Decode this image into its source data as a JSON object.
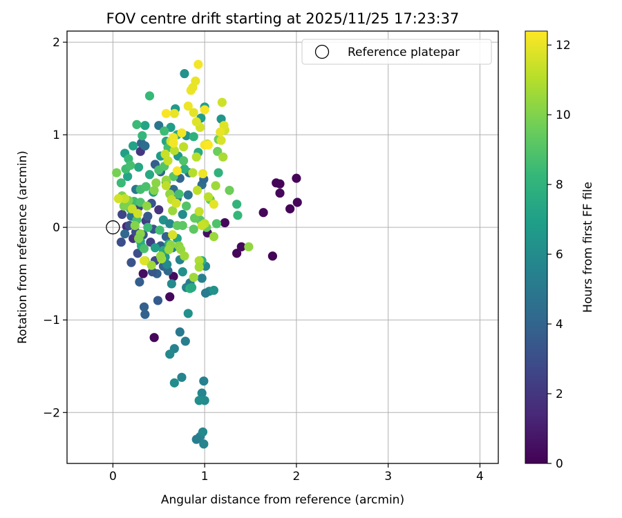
{
  "chart_data": {
    "type": "scatter",
    "title": "FOV centre drift starting at 2025/11/25 17:23:37",
    "xlabel": "Angular distance from reference (arcmin)",
    "ylabel": "Rotation from reference (arcmin)",
    "xlim": [
      -0.5,
      4.2
    ],
    "ylim": [
      -2.55,
      2.12
    ],
    "xticks": [
      0,
      1,
      2,
      3,
      4
    ],
    "xtick_labels": [
      "0",
      "1",
      "2",
      "3",
      "4"
    ],
    "yticks": [
      -2,
      -1,
      0,
      1,
      2
    ],
    "ytick_labels": [
      "−2",
      "−1",
      "0",
      "1",
      "2"
    ],
    "grid": true,
    "legend": {
      "position": "top-right",
      "label": "Reference platepar"
    },
    "reference_point": {
      "x": 0,
      "y": 0
    },
    "colorbar": {
      "label": "Hours from first FF file",
      "range": [
        0,
        12.4
      ],
      "ticks": [
        0,
        2,
        4,
        6,
        8,
        10,
        12
      ],
      "tick_labels": [
        "0",
        "2",
        "4",
        "6",
        "8",
        "10",
        "12"
      ],
      "colormap": [
        "#440154",
        "#482878",
        "#3e4989",
        "#31688e",
        "#26828e",
        "#1f9e89",
        "#35b779",
        "#6ece58",
        "#b5de2b",
        "#fde725"
      ]
    },
    "points": [
      {
        "x": 0.45,
        "y": -1.19,
        "c": 0.2
      },
      {
        "x": 0.62,
        "y": -0.75,
        "c": 0.3
      },
      {
        "x": 0.33,
        "y": -0.5,
        "c": 0.5
      },
      {
        "x": 0.66,
        "y": -0.53,
        "c": 0.4
      },
      {
        "x": 1.22,
        "y": 0.05,
        "c": 0.3
      },
      {
        "x": 1.03,
        "y": -0.06,
        "c": 0.5
      },
      {
        "x": 1.35,
        "y": -0.28,
        "c": 0.2
      },
      {
        "x": 1.4,
        "y": -0.21,
        "c": 0.3
      },
      {
        "x": 1.74,
        "y": -0.31,
        "c": 0.1
      },
      {
        "x": 1.64,
        "y": 0.16,
        "c": 0.2
      },
      {
        "x": 1.78,
        "y": 0.48,
        "c": 0.1
      },
      {
        "x": 1.82,
        "y": 0.47,
        "c": 0.15
      },
      {
        "x": 1.82,
        "y": 0.37,
        "c": 0.2
      },
      {
        "x": 1.93,
        "y": 0.2,
        "c": 0.1
      },
      {
        "x": 2.0,
        "y": 0.53,
        "c": 0.1
      },
      {
        "x": 2.01,
        "y": 0.27,
        "c": 0.2
      },
      {
        "x": 0.15,
        "y": 0.01,
        "c": 1.5
      },
      {
        "x": 0.22,
        "y": -0.12,
        "c": 1.8
      },
      {
        "x": 0.3,
        "y": 0.82,
        "c": 2.0
      },
      {
        "x": 0.36,
        "y": 0.07,
        "c": 2.2
      },
      {
        "x": 0.28,
        "y": 0.22,
        "c": 2.5
      },
      {
        "x": 0.41,
        "y": -0.16,
        "c": 2.4
      },
      {
        "x": 0.5,
        "y": 0.19,
        "c": 1.9
      },
      {
        "x": 0.46,
        "y": -0.36,
        "c": 2.8
      },
      {
        "x": 0.27,
        "y": -0.28,
        "c": 3.0
      },
      {
        "x": 0.2,
        "y": -0.38,
        "c": 3.2
      },
      {
        "x": 0.09,
        "y": -0.16,
        "c": 3.0
      },
      {
        "x": 0.1,
        "y": 0.14,
        "c": 2.6
      },
      {
        "x": 0.18,
        "y": 0.02,
        "c": 3.1
      },
      {
        "x": 0.25,
        "y": -0.05,
        "c": 2.9
      },
      {
        "x": 0.33,
        "y": -0.08,
        "c": 3.4
      },
      {
        "x": 0.38,
        "y": 0.12,
        "c": 3.5
      },
      {
        "x": 0.44,
        "y": -0.02,
        "c": 3.2
      },
      {
        "x": 0.52,
        "y": -0.2,
        "c": 3.6
      },
      {
        "x": 0.48,
        "y": -0.5,
        "c": 3.8
      },
      {
        "x": 0.49,
        "y": -0.79,
        "c": 3.5
      },
      {
        "x": 0.29,
        "y": -0.59,
        "c": 3.7
      },
      {
        "x": 0.34,
        "y": -0.86,
        "c": 3.8
      },
      {
        "x": 0.35,
        "y": -0.94,
        "c": 3.9
      },
      {
        "x": 0.43,
        "y": -0.48,
        "c": 3.4
      },
      {
        "x": 0.55,
        "y": -0.42,
        "c": 4.0
      },
      {
        "x": 0.6,
        "y": -0.47,
        "c": 4.2
      },
      {
        "x": 0.58,
        "y": -0.1,
        "c": 3.9
      },
      {
        "x": 0.42,
        "y": 0.26,
        "c": 3.3
      },
      {
        "x": 0.46,
        "y": 0.68,
        "c": 3.7
      },
      {
        "x": 0.52,
        "y": 0.6,
        "c": 3.9
      },
      {
        "x": 0.31,
        "y": 0.91,
        "c": 4.1
      },
      {
        "x": 0.35,
        "y": 0.88,
        "c": 4.4
      },
      {
        "x": 0.5,
        "y": 1.1,
        "c": 4.8
      },
      {
        "x": 0.58,
        "y": 0.49,
        "c": 4.5
      },
      {
        "x": 0.66,
        "y": 0.41,
        "c": 4.3
      },
      {
        "x": 0.7,
        "y": 0.31,
        "c": 4.6
      },
      {
        "x": 0.25,
        "y": 0.41,
        "c": 4.9
      },
      {
        "x": 0.2,
        "y": 0.12,
        "c": 4.7
      },
      {
        "x": 0.13,
        "y": -0.07,
        "c": 4.2
      },
      {
        "x": 0.73,
        "y": 0.53,
        "c": 4.0
      },
      {
        "x": 0.83,
        "y": 0.59,
        "c": 4.8
      },
      {
        "x": 0.97,
        "y": 0.46,
        "c": 4.4
      },
      {
        "x": 0.99,
        "y": 0.52,
        "c": 4.1
      },
      {
        "x": 0.82,
        "y": 0.35,
        "c": 4.9
      },
      {
        "x": 0.73,
        "y": -1.13,
        "c": 5.0
      },
      {
        "x": 0.79,
        "y": -1.23,
        "c": 5.3
      },
      {
        "x": 0.67,
        "y": -1.31,
        "c": 5.5
      },
      {
        "x": 0.62,
        "y": -1.37,
        "c": 5.8
      },
      {
        "x": 0.75,
        "y": -1.62,
        "c": 5.6
      },
      {
        "x": 0.67,
        "y": -1.68,
        "c": 6.0
      },
      {
        "x": 0.99,
        "y": -1.66,
        "c": 5.4
      },
      {
        "x": 0.97,
        "y": -1.79,
        "c": 5.7
      },
      {
        "x": 1.0,
        "y": -1.87,
        "c": 5.9
      },
      {
        "x": 0.94,
        "y": -1.87,
        "c": 6.1
      },
      {
        "x": 0.95,
        "y": -2.26,
        "c": 5.5
      },
      {
        "x": 0.98,
        "y": -2.21,
        "c": 5.8
      },
      {
        "x": 0.91,
        "y": -2.29,
        "c": 5.3
      },
      {
        "x": 0.99,
        "y": -2.34,
        "c": 5.6
      },
      {
        "x": 0.82,
        "y": -0.93,
        "c": 6.2
      },
      {
        "x": 0.64,
        "y": -0.61,
        "c": 5.9
      },
      {
        "x": 0.84,
        "y": -0.6,
        "c": 5.2
      },
      {
        "x": 0.8,
        "y": -0.65,
        "c": 5.6
      },
      {
        "x": 0.97,
        "y": -0.55,
        "c": 5.4
      },
      {
        "x": 1.01,
        "y": -0.42,
        "c": 5.8
      },
      {
        "x": 1.05,
        "y": -0.69,
        "c": 6.0
      },
      {
        "x": 1.01,
        "y": -0.71,
        "c": 5.2
      },
      {
        "x": 1.1,
        "y": -0.68,
        "c": 6.3
      },
      {
        "x": 0.73,
        "y": -0.35,
        "c": 5.5
      },
      {
        "x": 0.76,
        "y": -0.48,
        "c": 6.2
      },
      {
        "x": 0.57,
        "y": -0.32,
        "c": 6.6
      },
      {
        "x": 0.59,
        "y": -0.4,
        "c": 5.9
      },
      {
        "x": 0.65,
        "y": -0.22,
        "c": 5.7
      },
      {
        "x": 0.55,
        "y": 0.08,
        "c": 6.3
      },
      {
        "x": 0.62,
        "y": 0.04,
        "c": 5.8
      },
      {
        "x": 0.76,
        "y": 0.14,
        "c": 6.0
      },
      {
        "x": 0.78,
        "y": 1.66,
        "c": 6.3
      },
      {
        "x": 0.8,
        "y": 0.99,
        "c": 6.4
      },
      {
        "x": 0.71,
        "y": 0.77,
        "c": 6.6
      },
      {
        "x": 0.52,
        "y": 0.77,
        "c": 6.8
      },
      {
        "x": 0.68,
        "y": 1.28,
        "c": 6.7
      },
      {
        "x": 0.96,
        "y": 1.18,
        "c": 6.9
      },
      {
        "x": 1.0,
        "y": 1.3,
        "c": 7.0
      },
      {
        "x": 1.18,
        "y": 1.17,
        "c": 6.5
      },
      {
        "x": 0.35,
        "y": 1.1,
        "c": 7.2
      },
      {
        "x": 0.58,
        "y": 0.93,
        "c": 7.3
      },
      {
        "x": 0.63,
        "y": 1.08,
        "c": 6.9
      },
      {
        "x": 0.22,
        "y": 0.88,
        "c": 7.1
      },
      {
        "x": 0.13,
        "y": 0.8,
        "c": 7.0
      },
      {
        "x": 0.16,
        "y": 0.55,
        "c": 7.2
      },
      {
        "x": 0.28,
        "y": 0.65,
        "c": 7.4
      },
      {
        "x": 0.4,
        "y": 0.57,
        "c": 7.5
      },
      {
        "x": 0.44,
        "y": 0.38,
        "c": 7.1
      },
      {
        "x": 0.3,
        "y": -0.15,
        "c": 7.3
      },
      {
        "x": 0.31,
        "y": -0.2,
        "c": 7.6
      },
      {
        "x": 0.46,
        "y": -0.22,
        "c": 7.0
      },
      {
        "x": 0.55,
        "y": -0.25,
        "c": 7.4
      },
      {
        "x": 0.61,
        "y": -0.18,
        "c": 7.7
      },
      {
        "x": 0.7,
        "y": -0.12,
        "c": 7.2
      },
      {
        "x": 0.78,
        "y": 0.63,
        "c": 7.8
      },
      {
        "x": 0.93,
        "y": 0.81,
        "c": 7.6
      },
      {
        "x": 0.88,
        "y": 0.98,
        "c": 7.9
      },
      {
        "x": 0.7,
        "y": 1.0,
        "c": 7.4
      },
      {
        "x": 1.15,
        "y": 0.59,
        "c": 8.0
      },
      {
        "x": 0.97,
        "y": -0.36,
        "c": 7.8
      },
      {
        "x": 0.84,
        "y": -0.66,
        "c": 7.9
      },
      {
        "x": 0.86,
        "y": -0.65,
        "c": 7.5
      },
      {
        "x": 1.35,
        "y": 0.25,
        "c": 8.1
      },
      {
        "x": 1.36,
        "y": 0.13,
        "c": 8.2
      },
      {
        "x": 0.4,
        "y": 1.42,
        "c": 8.3
      },
      {
        "x": 0.26,
        "y": 1.11,
        "c": 8.4
      },
      {
        "x": 0.32,
        "y": 0.99,
        "c": 8.2
      },
      {
        "x": 0.56,
        "y": 1.04,
        "c": 8.5
      },
      {
        "x": 0.6,
        "y": 0.86,
        "c": 8.6
      },
      {
        "x": 0.17,
        "y": 0.74,
        "c": 8.3
      },
      {
        "x": 0.14,
        "y": 0.63,
        "c": 8.5
      },
      {
        "x": 0.19,
        "y": 0.67,
        "c": 8.7
      },
      {
        "x": 0.09,
        "y": 0.48,
        "c": 8.4
      },
      {
        "x": 0.3,
        "y": 0.41,
        "c": 8.6
      },
      {
        "x": 0.36,
        "y": 0.44,
        "c": 8.8
      },
      {
        "x": 0.23,
        "y": 0.28,
        "c": 8.5
      },
      {
        "x": 0.19,
        "y": 0.2,
        "c": 8.9
      },
      {
        "x": 0.26,
        "y": 0.08,
        "c": 8.7
      },
      {
        "x": 0.38,
        "y": 0.0,
        "c": 8.4
      },
      {
        "x": 0.34,
        "y": -0.23,
        "c": 8.8
      },
      {
        "x": 0.51,
        "y": -0.03,
        "c": 8.6
      },
      {
        "x": 0.3,
        "y": 0.27,
        "c": 8.9
      },
      {
        "x": 0.5,
        "y": 0.62,
        "c": 8.8
      },
      {
        "x": 0.56,
        "y": 0.66,
        "c": 9.0
      },
      {
        "x": 0.77,
        "y": 0.72,
        "c": 8.9
      },
      {
        "x": 0.66,
        "y": 0.55,
        "c": 9.1
      },
      {
        "x": 0.72,
        "y": 0.36,
        "c": 8.7
      },
      {
        "x": 0.8,
        "y": 0.23,
        "c": 9.0
      },
      {
        "x": 0.88,
        "y": -0.02,
        "c": 9.2
      },
      {
        "x": 0.95,
        "y": 0.08,
        "c": 9.1
      },
      {
        "x": 1.13,
        "y": 0.04,
        "c": 8.9
      },
      {
        "x": 0.7,
        "y": 0.02,
        "c": 9.3
      },
      {
        "x": 0.76,
        "y": 0.02,
        "c": 9.2
      },
      {
        "x": 0.89,
        "y": 0.1,
        "c": 9.4
      },
      {
        "x": 1.02,
        "y": -0.0,
        "c": 9.5
      },
      {
        "x": 1.06,
        "y": 0.3,
        "c": 9.3
      },
      {
        "x": 1.14,
        "y": 0.82,
        "c": 9.6
      },
      {
        "x": 1.15,
        "y": 0.95,
        "c": 9.7
      },
      {
        "x": 1.27,
        "y": 0.4,
        "c": 9.6
      },
      {
        "x": 0.04,
        "y": 0.59,
        "c": 9.8
      },
      {
        "x": 0.1,
        "y": 0.34,
        "c": 9.9
      },
      {
        "x": 0.17,
        "y": 0.29,
        "c": 10.0
      },
      {
        "x": 0.12,
        "y": 0.23,
        "c": 9.9
      },
      {
        "x": 0.24,
        "y": 0.02,
        "c": 10.1
      },
      {
        "x": 0.3,
        "y": -0.07,
        "c": 10.2
      },
      {
        "x": 0.28,
        "y": -0.12,
        "c": 10.0
      },
      {
        "x": 0.37,
        "y": 0.23,
        "c": 10.3
      },
      {
        "x": 0.45,
        "y": 0.4,
        "c": 10.1
      },
      {
        "x": 0.47,
        "y": 0.48,
        "c": 10.2
      },
      {
        "x": 0.58,
        "y": 0.51,
        "c": 10.4
      },
      {
        "x": 0.62,
        "y": 0.36,
        "c": 10.3
      },
      {
        "x": 0.65,
        "y": 0.18,
        "c": 10.5
      },
      {
        "x": 0.72,
        "y": -0.2,
        "c": 10.2
      },
      {
        "x": 0.74,
        "y": -0.24,
        "c": 10.4
      },
      {
        "x": 0.78,
        "y": -0.31,
        "c": 10.6
      },
      {
        "x": 0.63,
        "y": -0.19,
        "c": 10.3
      },
      {
        "x": 0.61,
        "y": -0.24,
        "c": 10.5
      },
      {
        "x": 0.53,
        "y": -0.34,
        "c": 10.7
      },
      {
        "x": 0.52,
        "y": -0.31,
        "c": 10.4
      },
      {
        "x": 0.42,
        "y": -0.41,
        "c": 10.6
      },
      {
        "x": 0.35,
        "y": -0.36,
        "c": 10.8
      },
      {
        "x": 0.94,
        "y": -0.36,
        "c": 10.9
      },
      {
        "x": 0.94,
        "y": -0.43,
        "c": 10.7
      },
      {
        "x": 0.88,
        "y": -0.54,
        "c": 10.6
      },
      {
        "x": 1.1,
        "y": -0.1,
        "c": 10.5
      },
      {
        "x": 1.48,
        "y": -0.21,
        "c": 10.3
      },
      {
        "x": 1.12,
        "y": 0.45,
        "c": 10.6
      },
      {
        "x": 1.2,
        "y": 0.76,
        "c": 10.8
      },
      {
        "x": 1.03,
        "y": 0.9,
        "c": 11.0
      },
      {
        "x": 0.91,
        "y": 0.76,
        "c": 11.1
      },
      {
        "x": 0.87,
        "y": 0.59,
        "c": 11.0
      },
      {
        "x": 0.92,
        "y": 0.4,
        "c": 11.2
      },
      {
        "x": 1.04,
        "y": 0.33,
        "c": 11.1
      },
      {
        "x": 0.94,
        "y": 0.17,
        "c": 11.3
      },
      {
        "x": 1.0,
        "y": 0.04,
        "c": 11.2
      },
      {
        "x": 0.97,
        "y": 0.02,
        "c": 11.4
      },
      {
        "x": 0.77,
        "y": 0.87,
        "c": 11.2
      },
      {
        "x": 0.67,
        "y": 0.83,
        "c": 11.1
      },
      {
        "x": 0.6,
        "y": 0.72,
        "c": 11.3
      },
      {
        "x": 0.63,
        "y": 0.93,
        "c": 11.5
      },
      {
        "x": 0.57,
        "y": 0.79,
        "c": 11.4
      },
      {
        "x": 0.58,
        "y": 0.45,
        "c": 11.2
      },
      {
        "x": 0.64,
        "y": 0.3,
        "c": 11.3
      },
      {
        "x": 0.69,
        "y": 0.26,
        "c": 11.6
      },
      {
        "x": 0.21,
        "y": 0.2,
        "c": 11.4
      },
      {
        "x": 0.27,
        "y": 0.15,
        "c": 11.5
      },
      {
        "x": 0.13,
        "y": 0.31,
        "c": 11.3
      },
      {
        "x": 0.06,
        "y": 0.31,
        "c": 11.6
      },
      {
        "x": 0.34,
        "y": -0.36,
        "c": 11.8
      },
      {
        "x": 0.65,
        "y": -0.08,
        "c": 11.7
      },
      {
        "x": 1.19,
        "y": 1.35,
        "c": 11.5
      },
      {
        "x": 1.22,
        "y": 1.05,
        "c": 11.6
      },
      {
        "x": 1.21,
        "y": 1.1,
        "c": 11.8
      },
      {
        "x": 1.18,
        "y": 0.94,
        "c": 11.7
      },
      {
        "x": 1.1,
        "y": 0.25,
        "c": 11.9
      },
      {
        "x": 0.95,
        "y": 1.08,
        "c": 11.6
      },
      {
        "x": 0.91,
        "y": 1.14,
        "c": 11.8
      },
      {
        "x": 0.88,
        "y": 1.24,
        "c": 11.9
      },
      {
        "x": 0.9,
        "y": 1.58,
        "c": 12.0
      },
      {
        "x": 0.85,
        "y": 1.48,
        "c": 12.1
      },
      {
        "x": 0.87,
        "y": 1.51,
        "c": 12.0
      },
      {
        "x": 0.93,
        "y": 1.76,
        "c": 12.2
      },
      {
        "x": 0.82,
        "y": 1.31,
        "c": 12.1
      },
      {
        "x": 1.0,
        "y": 1.27,
        "c": 12.3
      },
      {
        "x": 0.75,
        "y": 1.02,
        "c": 12.2
      },
      {
        "x": 0.67,
        "y": 1.23,
        "c": 12.0
      },
      {
        "x": 0.58,
        "y": 1.23,
        "c": 12.3
      },
      {
        "x": 0.66,
        "y": 0.97,
        "c": 12.1
      },
      {
        "x": 0.66,
        "y": 0.91,
        "c": 12.2
      },
      {
        "x": 0.7,
        "y": 0.61,
        "c": 12.3
      },
      {
        "x": 0.98,
        "y": 0.58,
        "c": 12.1
      },
      {
        "x": 1.0,
        "y": 0.89,
        "c": 12.2
      },
      {
        "x": 1.04,
        "y": 0.89,
        "c": 12.4
      },
      {
        "x": 1.17,
        "y": 1.03,
        "c": 12.0
      }
    ]
  }
}
